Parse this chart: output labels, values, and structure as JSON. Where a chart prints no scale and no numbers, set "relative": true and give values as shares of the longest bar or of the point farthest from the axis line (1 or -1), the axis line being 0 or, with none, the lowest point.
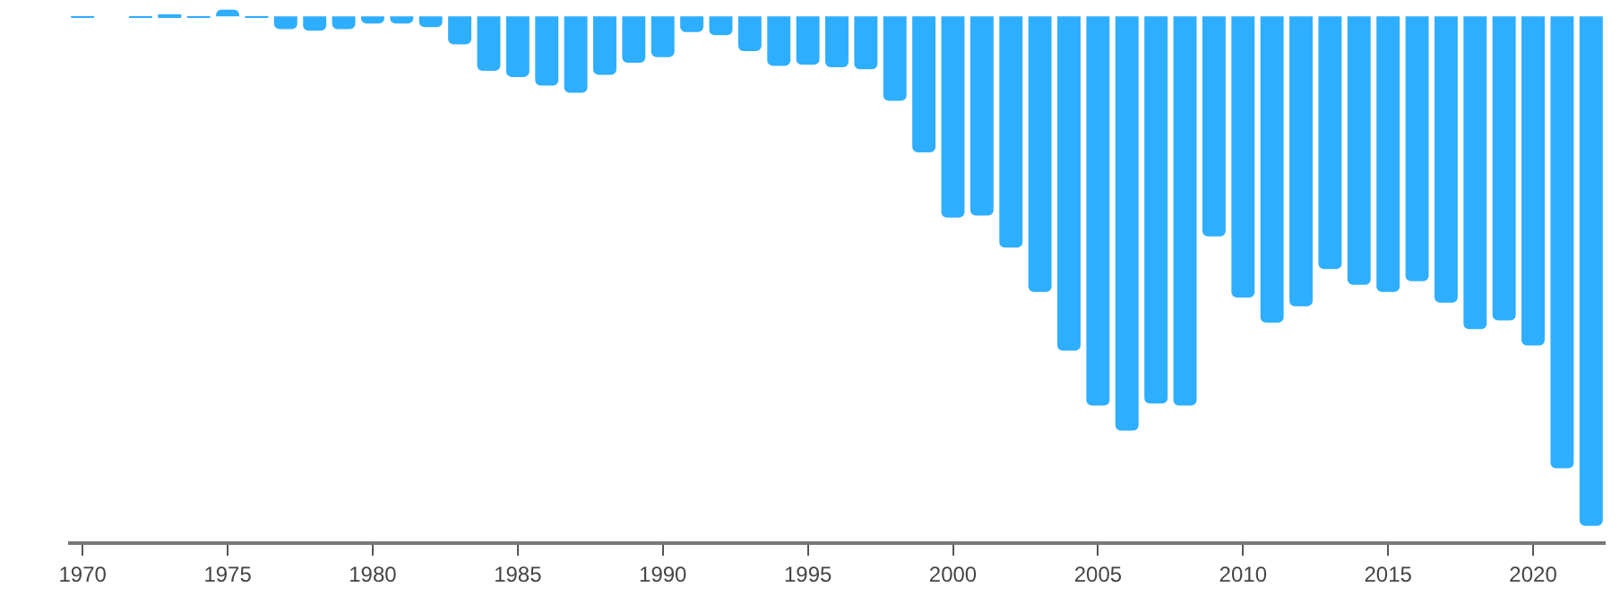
{
  "chart_data": {
    "type": "bar",
    "relative": true,
    "color": "#2eaeff",
    "x": [
      1970,
      1971,
      1972,
      1973,
      1974,
      1975,
      1976,
      1977,
      1978,
      1979,
      1980,
      1981,
      1982,
      1983,
      1984,
      1985,
      1986,
      1987,
      1988,
      1989,
      1990,
      1991,
      1992,
      1993,
      1994,
      1995,
      1996,
      1997,
      1998,
      1999,
      2000,
      2001,
      2002,
      2003,
      2004,
      2005,
      2006,
      2007,
      2008,
      2009,
      2010,
      2011,
      2012,
      2013,
      2014,
      2015,
      2016,
      2017,
      2018,
      2019,
      2020,
      2021,
      2022
    ],
    "values": [
      -0.003,
      0,
      -0.003,
      0.003,
      -0.003,
      0.013,
      -0.003,
      -0.025,
      -0.028,
      -0.025,
      -0.014,
      -0.014,
      -0.021,
      -0.055,
      -0.107,
      -0.119,
      -0.136,
      -0.15,
      -0.115,
      -0.091,
      -0.08,
      -0.031,
      -0.037,
      -0.068,
      -0.097,
      -0.095,
      -0.1,
      -0.104,
      -0.166,
      -0.267,
      -0.395,
      -0.391,
      -0.454,
      -0.541,
      -0.656,
      -0.764,
      -0.813,
      -0.76,
      -0.764,
      -0.432,
      -0.552,
      -0.601,
      -0.569,
      -0.496,
      -0.527,
      -0.541,
      -0.52,
      -0.562,
      -0.614,
      -0.597,
      -0.646,
      -0.887,
      -1
    ],
    "xlim": [
      1969.5,
      2022.5
    ],
    "xticks": [
      1970,
      1975,
      1980,
      1985,
      1990,
      1995,
      2000,
      2005,
      2010,
      2015,
      2020
    ]
  }
}
